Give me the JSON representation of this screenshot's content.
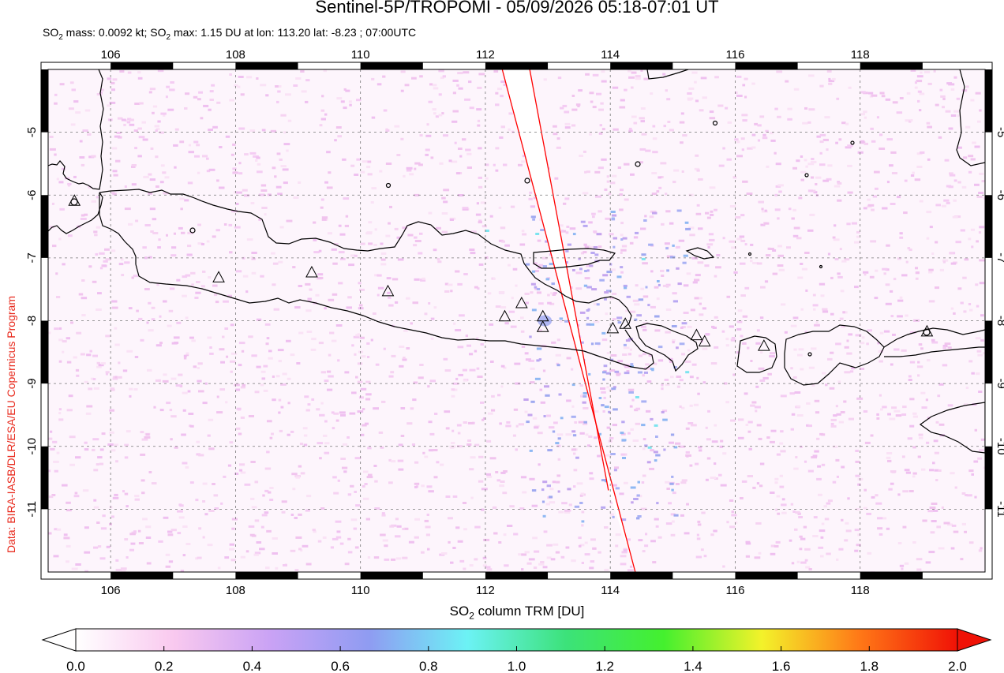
{
  "header": {
    "title": "Sentinel-5P/TROPOMI - 05/09/2026 05:18-07:01 UT",
    "subtitle_parts": {
      "so2_1": "SO",
      "sub_1": "2",
      "mass": " mass: 0.0092 kt; ",
      "so2_2": "SO",
      "sub_2": "2",
      "max": " max: 1.15 DU at lon: 113.20 lat: -8.23 ; 07:00UTC"
    }
  },
  "credit": "Data: BIRA-IASB/DLR/ESA/EU Copernicus Program",
  "map": {
    "lon_range": [
      105,
      120
    ],
    "lat_range": [
      -12,
      -4
    ],
    "lon_ticks": [
      "106",
      "108",
      "110",
      "112",
      "114",
      "116",
      "118"
    ],
    "lat_ticks": [
      "-5",
      "-6",
      "-7",
      "-8",
      "-9",
      "-10",
      "-11"
    ],
    "volcanoes": [
      {
        "lon": 105.42,
        "lat": -6.1
      },
      {
        "lon": 107.73,
        "lat": -7.32
      },
      {
        "lon": 109.22,
        "lat": -7.24
      },
      {
        "lon": 110.44,
        "lat": -7.54
      },
      {
        "lon": 112.31,
        "lat": -7.94
      },
      {
        "lon": 112.58,
        "lat": -7.73
      },
      {
        "lon": 112.92,
        "lat": -7.94
      },
      {
        "lon": 112.92,
        "lat": -8.11
      },
      {
        "lon": 114.04,
        "lat": -8.13
      },
      {
        "lon": 114.24,
        "lat": -8.06
      },
      {
        "lon": 115.38,
        "lat": -8.24
      },
      {
        "lon": 115.51,
        "lat": -8.34
      },
      {
        "lon": 116.46,
        "lat": -8.41
      },
      {
        "lon": 119.07,
        "lat": -8.18
      }
    ],
    "swath_edges": [
      {
        "from": [
          112.27,
          -4.0
        ],
        "to": [
          114.4,
          -12.0
        ]
      },
      {
        "from": [
          112.71,
          -4.0
        ],
        "to": [
          113.97,
          -10.7
        ]
      }
    ],
    "colors": {
      "coast": "#000000",
      "swath_edge": "#ff0000",
      "grid": "#777777"
    }
  },
  "colorbar": {
    "label_so": "SO",
    "label_sub": "2",
    "label_rest": " column TRM [DU]",
    "ticks": [
      "0.0",
      "0.2",
      "0.4",
      "0.6",
      "0.8",
      "1.0",
      "1.2",
      "1.4",
      "1.6",
      "1.8",
      "2.0"
    ],
    "range": [
      0,
      2
    ],
    "stops": [
      "#ffffff",
      "#f9c9ef",
      "#c9a2f5",
      "#8f9cf2",
      "#6cf2f5",
      "#3ce27a",
      "#44f02e",
      "#f3f22a",
      "#ff7817",
      "#f01206"
    ]
  }
}
